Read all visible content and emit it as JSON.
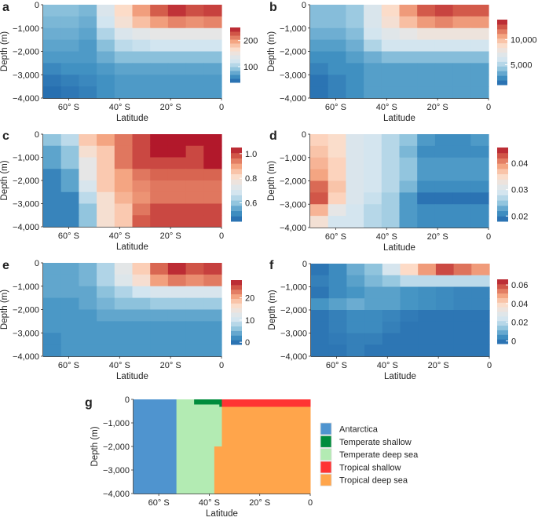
{
  "colormap": [
    "#2166ac",
    "#4393c3",
    "#92c5de",
    "#d1e5f0",
    "#e6e6e6",
    "#fddbc7",
    "#f4a582",
    "#d6604d",
    "#b2182b"
  ],
  "chart_data": [
    {
      "panel": "a",
      "type": "heatmap",
      "xlabel": "Latitude",
      "ylabel": "Depth (m)",
      "xlim": [
        -70,
        0
      ],
      "ylim": [
        -4000,
        0
      ],
      "xticks": [
        {
          "v": -60,
          "label": "60° S"
        },
        {
          "v": -40,
          "label": "40° S"
        },
        {
          "v": -20,
          "label": "20° S"
        },
        {
          "v": 0,
          "label": "0"
        }
      ],
      "yticks": [
        {
          "v": 0,
          "label": "0"
        },
        {
          "v": -1000,
          "label": "−1,000"
        },
        {
          "v": -2000,
          "label": "−2,000"
        },
        {
          "v": -3000,
          "label": "−3,000"
        },
        {
          "v": -4000,
          "label": "−4,000"
        }
      ],
      "colorbar": {
        "range": [
          40,
          250
        ],
        "ticks": [
          {
            "v": 100,
            "label": "100"
          },
          {
            "v": 200,
            "label": "200"
          }
        ]
      },
      "values": [
        [
          90,
          90,
          85,
          130,
          170,
          200,
          225,
          240,
          230,
          235
        ],
        [
          85,
          85,
          80,
          120,
          160,
          185,
          200,
          210,
          205,
          210
        ],
        [
          80,
          80,
          75,
          105,
          130,
          140,
          145,
          145,
          145,
          145
        ],
        [
          75,
          75,
          70,
          90,
          110,
          115,
          120,
          120,
          120,
          120
        ],
        [
          70,
          70,
          70,
          80,
          90,
          90,
          90,
          90,
          90,
          90
        ],
        [
          60,
          65,
          65,
          70,
          75,
          75,
          75,
          75,
          75,
          75
        ],
        [
          50,
          55,
          60,
          65,
          70,
          70,
          70,
          70,
          70,
          70
        ],
        [
          45,
          50,
          55,
          65,
          70,
          70,
          70,
          70,
          70,
          70
        ]
      ]
    },
    {
      "panel": "b",
      "type": "heatmap",
      "xlabel": "Latitude",
      "ylabel": "Depth (m)",
      "xlim": [
        -70,
        0
      ],
      "ylim": [
        -4000,
        0
      ],
      "xticks": [
        {
          "v": -60,
          "label": "60° S"
        },
        {
          "v": -40,
          "label": "40° S"
        },
        {
          "v": -20,
          "label": "20° S"
        },
        {
          "v": 0,
          "label": "0"
        }
      ],
      "yticks": [
        {
          "v": 0,
          "label": "0"
        },
        {
          "v": -1000,
          "label": "−1,000"
        },
        {
          "v": -2000,
          "label": "−2,000"
        },
        {
          "v": -3000,
          "label": "−3,000"
        },
        {
          "v": -4000,
          "label": "−4,000"
        }
      ],
      "colorbar": {
        "range": [
          1000,
          14000
        ],
        "ticks": [
          {
            "v": 5000,
            "label": "5,000"
          },
          {
            "v": 10000,
            "label": "10,000"
          }
        ]
      },
      "values": [
        [
          4000,
          4000,
          4500,
          6500,
          9000,
          11000,
          12500,
          13000,
          12500,
          12500
        ],
        [
          4000,
          4000,
          4500,
          6500,
          8500,
          10000,
          11000,
          11500,
          11000,
          11000
        ],
        [
          3500,
          3500,
          4000,
          6000,
          7000,
          7500,
          8000,
          8000,
          8000,
          8000
        ],
        [
          3000,
          3000,
          3500,
          5000,
          6000,
          6000,
          6000,
          6000,
          6000,
          6000
        ],
        [
          2500,
          2500,
          3000,
          3500,
          4000,
          4000,
          4000,
          4000,
          4000,
          4000
        ],
        [
          2000,
          2500,
          2500,
          3000,
          3000,
          3000,
          3000,
          3000,
          3000,
          3000
        ],
        [
          1500,
          2000,
          2500,
          3000,
          3000,
          3000,
          3000,
          3000,
          3000,
          3000
        ],
        [
          1500,
          2000,
          2500,
          3000,
          3000,
          3000,
          3000,
          3000,
          3000,
          3000
        ]
      ]
    },
    {
      "panel": "c",
      "type": "heatmap",
      "xlabel": "Latitude",
      "ylabel": "Depth (m)",
      "xlim": [
        -70,
        0
      ],
      "ylim": [
        -4000,
        0
      ],
      "xticks": [
        {
          "v": -60,
          "label": "60° S"
        },
        {
          "v": -40,
          "label": "40° S"
        },
        {
          "v": -20,
          "label": "20° S"
        },
        {
          "v": 0,
          "label": "0"
        }
      ],
      "yticks": [
        {
          "v": 0,
          "label": "0"
        },
        {
          "v": -1000,
          "label": "−1,000"
        },
        {
          "v": -2000,
          "label": "−2,000"
        },
        {
          "v": -3000,
          "label": "−3,000"
        },
        {
          "v": -4000,
          "label": "−4,000"
        }
      ],
      "colorbar": {
        "range": [
          0.45,
          1.05
        ],
        "ticks": [
          {
            "v": 0.6,
            "label": "0.6"
          },
          {
            "v": 0.8,
            "label": "0.8"
          },
          {
            "v": 1.0,
            "label": "1.0"
          }
        ]
      },
      "values": [
        [
          0.6,
          0.65,
          0.85,
          0.9,
          0.95,
          1.0,
          1.05,
          1.05,
          1.05,
          1.05
        ],
        [
          0.55,
          0.6,
          0.8,
          0.85,
          0.95,
          1.0,
          1.05,
          1.05,
          1.0,
          1.05
        ],
        [
          0.55,
          0.6,
          0.75,
          0.85,
          0.95,
          1.0,
          1.0,
          1.0,
          1.0,
          1.05
        ],
        [
          0.5,
          0.55,
          0.75,
          0.85,
          0.9,
          0.95,
          0.97,
          0.97,
          0.97,
          0.97
        ],
        [
          0.5,
          0.55,
          0.7,
          0.85,
          0.9,
          0.93,
          0.95,
          0.95,
          0.95,
          0.95
        ],
        [
          0.5,
          0.5,
          0.65,
          0.8,
          0.88,
          0.92,
          0.95,
          0.95,
          0.95,
          0.95
        ],
        [
          0.5,
          0.5,
          0.6,
          0.8,
          0.85,
          0.95,
          1.0,
          1.0,
          1.0,
          1.0
        ],
        [
          0.5,
          0.5,
          0.6,
          0.8,
          0.85,
          0.98,
          1.0,
          1.0,
          1.0,
          1.0
        ]
      ]
    },
    {
      "panel": "d",
      "type": "heatmap",
      "xlabel": "Latitude",
      "ylabel": "Depth (m)",
      "xlim": [
        -70,
        0
      ],
      "ylim": [
        -4000,
        0
      ],
      "xticks": [
        {
          "v": -60,
          "label": "60° S"
        },
        {
          "v": -40,
          "label": "40° S"
        },
        {
          "v": -20,
          "label": "20° S"
        },
        {
          "v": 0,
          "label": "0"
        }
      ],
      "yticks": [
        {
          "v": 0,
          "label": "0"
        },
        {
          "v": -1000,
          "label": "−1,000"
        },
        {
          "v": -2000,
          "label": "−2,000"
        },
        {
          "v": -3000,
          "label": "−3,000"
        },
        {
          "v": -4000,
          "label": "−4,000"
        }
      ],
      "colorbar": {
        "range": [
          0.018,
          0.046
        ],
        "ticks": [
          {
            "v": 0.02,
            "label": "0.02"
          },
          {
            "v": 0.03,
            "label": "0.03"
          },
          {
            "v": 0.04,
            "label": "0.04"
          }
        ]
      },
      "values": [
        [
          0.036,
          0.035,
          0.03,
          0.029,
          0.027,
          0.025,
          0.022,
          0.021,
          0.021,
          0.022
        ],
        [
          0.037,
          0.035,
          0.03,
          0.029,
          0.027,
          0.024,
          0.021,
          0.021,
          0.021,
          0.021
        ],
        [
          0.038,
          0.036,
          0.03,
          0.029,
          0.027,
          0.025,
          0.022,
          0.022,
          0.022,
          0.022
        ],
        [
          0.039,
          0.036,
          0.03,
          0.029,
          0.027,
          0.025,
          0.022,
          0.022,
          0.022,
          0.022
        ],
        [
          0.042,
          0.037,
          0.03,
          0.029,
          0.027,
          0.024,
          0.021,
          0.021,
          0.021,
          0.021
        ],
        [
          0.043,
          0.036,
          0.03,
          0.028,
          0.026,
          0.022,
          0.019,
          0.019,
          0.019,
          0.019
        ],
        [
          0.038,
          0.032,
          0.029,
          0.027,
          0.026,
          0.022,
          0.021,
          0.021,
          0.021,
          0.021
        ],
        [
          0.034,
          0.029,
          0.029,
          0.027,
          0.026,
          0.022,
          0.021,
          0.021,
          0.021,
          0.021
        ]
      ]
    },
    {
      "panel": "e",
      "type": "heatmap",
      "xlabel": "Latitude",
      "ylabel": "Depth (m)",
      "xlim": [
        -70,
        0
      ],
      "ylim": [
        -4000,
        0
      ],
      "xticks": [
        {
          "v": -60,
          "label": "60° S"
        },
        {
          "v": -40,
          "label": "40° S"
        },
        {
          "v": -20,
          "label": "20° S"
        },
        {
          "v": 0,
          "label": "0"
        }
      ],
      "yticks": [
        {
          "v": 0,
          "label": "0"
        },
        {
          "v": -1000,
          "label": "−1,000"
        },
        {
          "v": -2000,
          "label": "−2,000"
        },
        {
          "v": -3000,
          "label": "−3,000"
        },
        {
          "v": -4000,
          "label": "−4,000"
        }
      ],
      "colorbar": {
        "range": [
          -1,
          28
        ],
        "ticks": [
          {
            "v": 0,
            "label": "0"
          },
          {
            "v": 10,
            "label": "10"
          },
          {
            "v": 20,
            "label": "20"
          }
        ]
      },
      "values": [
        [
          4,
          4,
          5,
          8,
          13,
          18,
          24,
          27,
          25,
          26
        ],
        [
          4,
          4,
          5,
          8,
          12,
          16,
          21,
          23,
          22,
          23
        ],
        [
          4,
          4,
          4,
          6,
          8,
          10,
          11,
          11,
          11,
          11
        ],
        [
          3,
          3,
          4,
          5,
          6,
          6,
          7,
          7,
          7,
          7
        ],
        [
          3,
          3,
          3,
          4,
          4,
          4,
          4,
          4,
          4,
          4
        ],
        [
          3,
          3,
          3,
          3,
          3,
          3,
          3,
          3,
          3,
          3
        ],
        [
          2,
          3,
          3,
          3,
          3,
          3,
          3,
          3,
          3,
          3
        ],
        [
          2,
          3,
          3,
          3,
          3,
          3,
          3,
          3,
          3,
          3
        ]
      ]
    },
    {
      "panel": "f",
      "type": "heatmap",
      "xlabel": "Latitude",
      "ylabel": "Depth (m)",
      "xlim": [
        -70,
        0
      ],
      "ylim": [
        -4000,
        0
      ],
      "xticks": [
        {
          "v": -60,
          "label": "60° S"
        },
        {
          "v": -40,
          "label": "40° S"
        },
        {
          "v": -20,
          "label": "20° S"
        },
        {
          "v": 0,
          "label": "0"
        }
      ],
      "yticks": [
        {
          "v": 0,
          "label": "0"
        },
        {
          "v": -1000,
          "label": "−1,000"
        },
        {
          "v": -2000,
          "label": "−2,000"
        },
        {
          "v": -3000,
          "label": "−3,000"
        },
        {
          "v": -4000,
          "label": "−4,000"
        }
      ],
      "colorbar": {
        "range": [
          -0.003,
          0.066
        ],
        "ticks": [
          {
            "v": 0,
            "label": "0"
          },
          {
            "v": 0.02,
            "label": "0.02"
          },
          {
            "v": 0.04,
            "label": "0.04"
          },
          {
            "v": 0.06,
            "label": "0.06"
          }
        ]
      },
      "values": [
        [
          0,
          0.004,
          0.01,
          0.014,
          0.025,
          0.04,
          0.05,
          0.06,
          0.055,
          0.05
        ],
        [
          0.002,
          0.004,
          0.008,
          0.012,
          0.015,
          0.02,
          0.02,
          0.02,
          0.02,
          0.02
        ],
        [
          0,
          0.004,
          0.006,
          0.008,
          0.008,
          0.006,
          0.005,
          0.004,
          0.003,
          0.003
        ],
        [
          0.006,
          0.008,
          0.01,
          0.008,
          0.008,
          0.006,
          0.005,
          0.004,
          0.003,
          0.003
        ],
        [
          0,
          0.002,
          0.004,
          0.004,
          0.003,
          0.001,
          0,
          0,
          0,
          0
        ],
        [
          0,
          0.002,
          0.004,
          0.004,
          0.002,
          0,
          0,
          0,
          0,
          0
        ],
        [
          0,
          0.001,
          0.002,
          0.002,
          0,
          0,
          0,
          0,
          0,
          0
        ],
        [
          0,
          0,
          0.002,
          0,
          0,
          0,
          0,
          0,
          0,
          0
        ]
      ]
    },
    {
      "panel": "g",
      "type": "categorical-map",
      "xlabel": "Latitude",
      "ylabel": "Depth (m)",
      "xlim": [
        -70,
        0
      ],
      "ylim": [
        -4000,
        0
      ],
      "xticks": [
        {
          "v": -60,
          "label": "60° S"
        },
        {
          "v": -40,
          "label": "40° S"
        },
        {
          "v": -20,
          "label": "20° S"
        },
        {
          "v": 0,
          "label": "0"
        }
      ],
      "yticks": [
        {
          "v": 0,
          "label": "0"
        },
        {
          "v": -1000,
          "label": "−1,000"
        },
        {
          "v": -2000,
          "label": "−2,000"
        },
        {
          "v": -3000,
          "label": "−3,000"
        },
        {
          "v": -4000,
          "label": "−4,000"
        }
      ],
      "legend": [
        {
          "label": "Antarctica",
          "color": "#4f94cf"
        },
        {
          "label": "Temperate shallow",
          "color": "#008c3c"
        },
        {
          "label": "Temperate deep sea",
          "color": "#b3ebb3"
        },
        {
          "label": "Tropical shallow",
          "color": "#ff3333"
        },
        {
          "label": "Tropical deep sea",
          "color": "#ffa54b"
        }
      ],
      "regions": [
        {
          "cls": 0,
          "lat": [
            -70,
            -53
          ],
          "depth": [
            -4000,
            0
          ]
        },
        {
          "cls": 2,
          "lat": [
            -53,
            -38
          ],
          "depth": [
            -4000,
            0
          ]
        },
        {
          "cls": 2,
          "lat": [
            -38,
            -35
          ],
          "depth": [
            -2000,
            0
          ]
        },
        {
          "cls": 4,
          "lat": [
            -38,
            0
          ],
          "depth": [
            -4000,
            -2000
          ]
        },
        {
          "cls": 4,
          "lat": [
            -35,
            0
          ],
          "depth": [
            -2000,
            -300
          ]
        },
        {
          "cls": 1,
          "lat": [
            -46,
            -35
          ],
          "depth": [
            -200,
            0
          ]
        },
        {
          "cls": 1,
          "lat": [
            -36,
            -34
          ],
          "depth": [
            -300,
            -200
          ]
        },
        {
          "cls": 3,
          "lat": [
            -35,
            0
          ],
          "depth": [
            -300,
            0
          ]
        }
      ]
    }
  ]
}
